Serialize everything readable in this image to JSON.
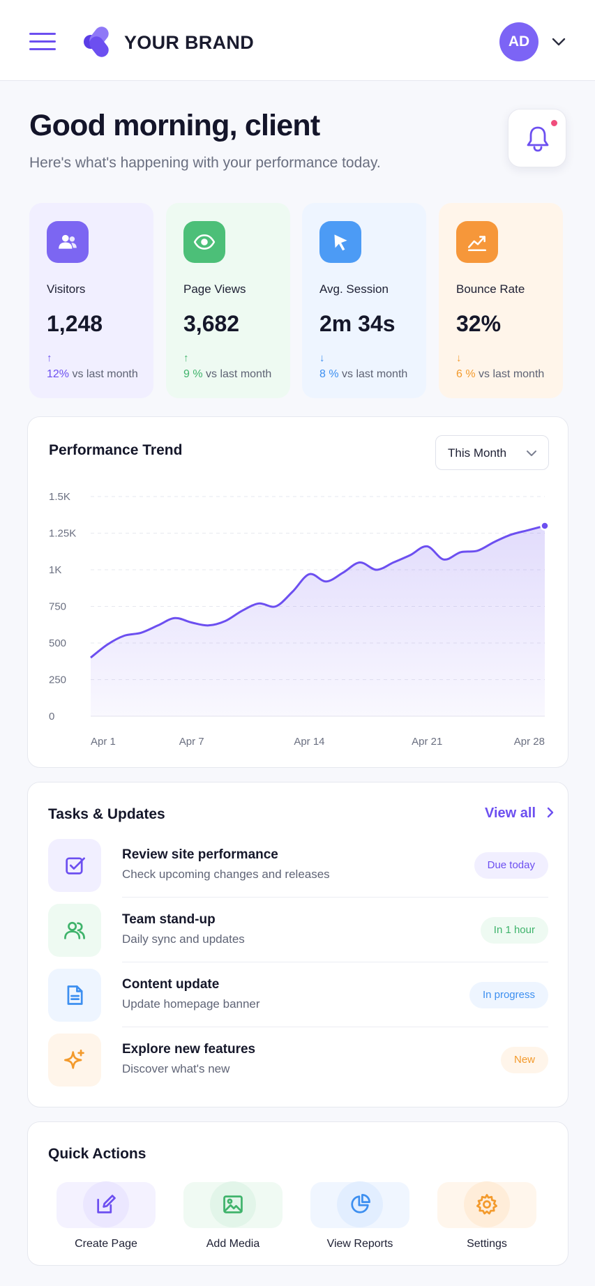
{
  "header": {
    "brand": "YOUR BRAND",
    "avatar_initials": "AD",
    "accent": "#6c4ff0"
  },
  "greeting": {
    "title": "Good morning, client",
    "subtitle": "Here's what's happening with your performance today."
  },
  "stats": [
    {
      "label": "Visitors",
      "value": "1,248",
      "arrow": "↑",
      "change": "12%",
      "suffix": "vs last month",
      "color": "#6c4ff0",
      "bg": "#f1efff",
      "icon_bg": "#7c66f2",
      "icon": "users-icon"
    },
    {
      "label": "Page Views",
      "value": "3,682",
      "arrow": "↑",
      "change": "9 %",
      "suffix": "vs last month",
      "color": "#3fb36b",
      "bg": "#eefaf2",
      "icon_bg": "#4cbf78",
      "icon": "eye-icon"
    },
    {
      "label": "Avg. Session",
      "value": "2m 34s",
      "arrow": "↓",
      "change": "8 %",
      "suffix": "vs last month",
      "color": "#3d8ff0",
      "bg": "#eef5ff",
      "icon_bg": "#4c9bf5",
      "icon": "cursor-icon"
    },
    {
      "label": "Bounce Rate",
      "value": "32%",
      "arrow": "↓",
      "change": "6 %",
      "suffix": "vs last month",
      "color": "#f39a2c",
      "bg": "#fff5ea",
      "icon_bg": "#f6973a",
      "icon": "trend-icon"
    }
  ],
  "performance": {
    "title": "Performance Trend",
    "range": "This Month"
  },
  "chart_data": {
    "type": "area",
    "title": "Performance Trend",
    "y_ticks": [
      "0",
      "250",
      "500",
      "750",
      "1K",
      "1.25K",
      "1.5K"
    ],
    "x_ticks": [
      "Apr 1",
      "Apr 7",
      "Apr 14",
      "Apr 21",
      "Apr 28"
    ],
    "ylim": [
      0,
      1500
    ],
    "x": [
      1,
      2,
      3,
      4,
      5,
      6,
      7,
      8,
      9,
      10,
      11,
      12,
      13,
      14,
      15,
      16,
      17,
      18,
      19,
      20,
      21,
      22,
      23,
      24,
      25,
      26,
      27,
      28
    ],
    "values": [
      400,
      490,
      550,
      570,
      620,
      670,
      640,
      620,
      650,
      720,
      770,
      750,
      850,
      970,
      920,
      980,
      1050,
      1000,
      1050,
      1100,
      1160,
      1070,
      1120,
      1130,
      1190,
      1240,
      1270,
      1300
    ],
    "color": "#6c4ff0",
    "grid": true
  },
  "tasks": {
    "title": "Tasks & Updates",
    "view_all": "View all",
    "items": [
      {
        "title": "Review site performance",
        "subtitle": "Check upcoming changes and releases",
        "badge": "Due today",
        "color": "#6c4ff0",
        "bg": "#f1efff",
        "icon": "checkbox-icon"
      },
      {
        "title": "Team stand-up",
        "subtitle": "Daily sync and updates",
        "badge": "In 1 hour",
        "color": "#3fb36b",
        "bg": "#eefaf2",
        "icon": "team-icon"
      },
      {
        "title": "Content update",
        "subtitle": "Update homepage banner",
        "badge": "In progress",
        "color": "#3d8ff0",
        "bg": "#eef5ff",
        "icon": "document-icon"
      },
      {
        "title": "Explore new features",
        "subtitle": "Discover what's new",
        "badge": "New",
        "color": "#f39a2c",
        "bg": "#fff5ea",
        "icon": "sparkle-icon"
      }
    ]
  },
  "quick_actions": {
    "title": "Quick Actions",
    "items": [
      {
        "label": "Create Page",
        "color": "#6c4ff0",
        "bg": "#f4f2ff",
        "circle": "#ebe7ff",
        "icon": "edit-icon"
      },
      {
        "label": "Add Media",
        "color": "#3fb36b",
        "bg": "#f0faf3",
        "circle": "#e2f5e9",
        "icon": "image-icon"
      },
      {
        "label": "View Reports",
        "color": "#3d8ff0",
        "bg": "#f0f6ff",
        "circle": "#e2eeff",
        "icon": "pie-chart-icon"
      },
      {
        "label": "Settings",
        "color": "#f39a2c",
        "bg": "#fff6ec",
        "circle": "#ffedd9",
        "icon": "gear-icon"
      }
    ]
  }
}
